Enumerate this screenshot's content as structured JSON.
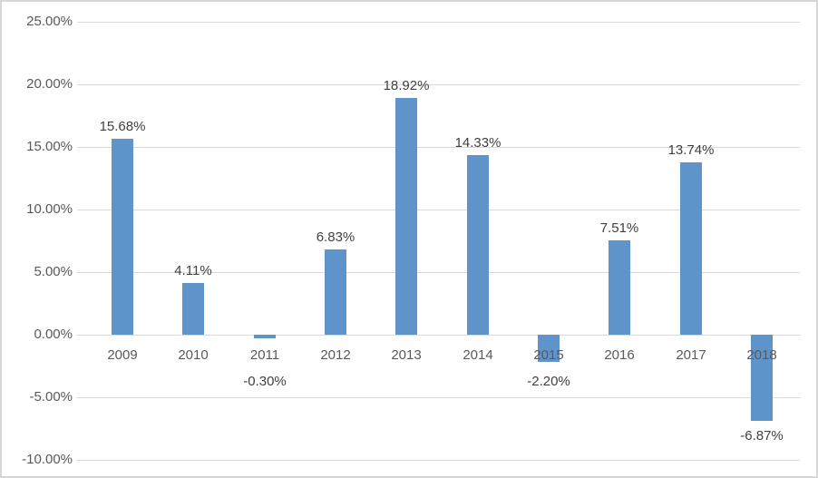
{
  "chart_data": {
    "type": "bar",
    "title": "",
    "xlabel": "",
    "ylabel": "",
    "categories": [
      "2009",
      "2010",
      "2011",
      "2012",
      "2013",
      "2014",
      "2015",
      "2016",
      "2017",
      "2018"
    ],
    "values": [
      15.68,
      4.11,
      -0.3,
      6.83,
      18.92,
      14.33,
      -2.2,
      7.51,
      13.74,
      -6.87
    ],
    "data_labels": [
      "15.68%",
      "4.11%",
      "-0.30%",
      "6.83%",
      "18.92%",
      "14.33%",
      "-2.20%",
      "7.51%",
      "13.74%",
      "-6.87%"
    ],
    "y_ticks": [
      {
        "value": 25,
        "label": "25.00%"
      },
      {
        "value": 20,
        "label": "20.00%"
      },
      {
        "value": 15,
        "label": "15.00%"
      },
      {
        "value": 10,
        "label": "10.00%"
      },
      {
        "value": 5,
        "label": "5.00%"
      },
      {
        "value": 0,
        "label": "0.00%"
      },
      {
        "value": -5,
        "label": "-5.00%"
      },
      {
        "value": -10,
        "label": "-10.00%"
      }
    ],
    "ylim": [
      -10,
      25
    ],
    "grid": true,
    "legend": "none",
    "colors": {
      "bar_fill": "#5f94cb",
      "gridline": "#d9d9d9",
      "axis_text": "#595959",
      "data_label_text": "#404040",
      "frame_border": "#d6d6d6",
      "background": "#ffffff"
    }
  }
}
